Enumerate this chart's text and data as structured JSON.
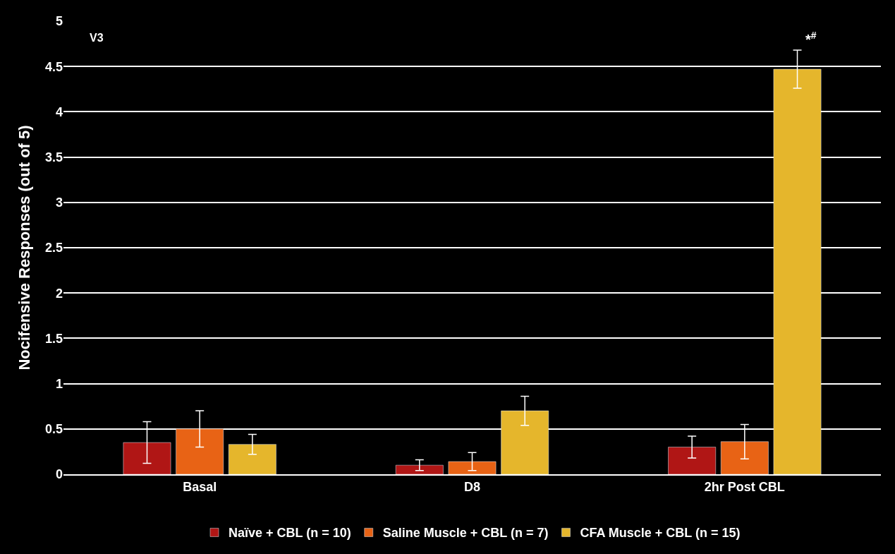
{
  "chart_data": {
    "type": "bar",
    "ylabel": "Nocifensive Responses (out of 5)",
    "categories": [
      "Basal",
      "D8",
      "2hr Post CBL"
    ],
    "series": [
      {
        "name": "Naïve + CBL (n = 10)",
        "color": "#b01615",
        "values": [
          0.35,
          0.1,
          0.3
        ],
        "errors": [
          0.23,
          0.06,
          0.12
        ]
      },
      {
        "name": "Saline Muscle + CBL (n = 7)",
        "color": "#e86315",
        "values": [
          0.5,
          0.14,
          0.36
        ],
        "errors": [
          0.2,
          0.1,
          0.19
        ]
      },
      {
        "name": "CFA Muscle + CBL (n = 15)",
        "color": "#e5b62c",
        "values": [
          0.33,
          0.7,
          4.47
        ],
        "errors": [
          0.11,
          0.16,
          0.21
        ]
      }
    ],
    "ylim": [
      0,
      5
    ],
    "yticks": [
      0,
      0.5,
      1,
      1.5,
      2,
      2.5,
      3,
      3.5,
      4,
      4.5,
      5
    ],
    "grid": "y",
    "legend": "bottom",
    "annotations": [
      "V3",
      "*$^{#}$"
    ]
  }
}
